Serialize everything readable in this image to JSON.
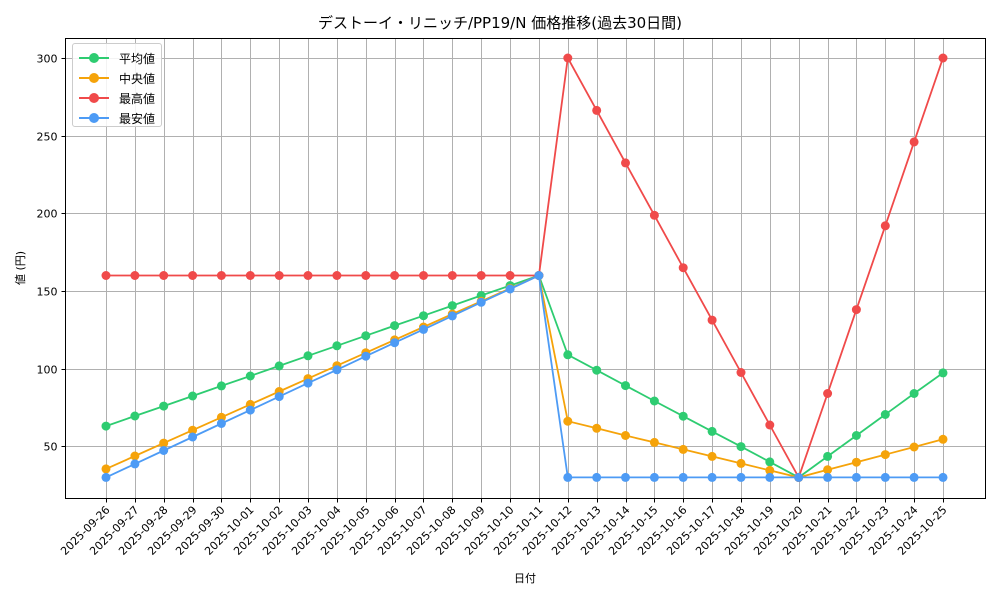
{
  "chart_data": {
    "type": "line",
    "title": "デストーイ・リニッチ/PP19/N 価格推移(過去30日間)",
    "xlabel": "日付",
    "ylabel": "値 (円)",
    "ylim": [
      20,
      312
    ],
    "yticks": [
      50,
      100,
      150,
      200,
      250,
      300
    ],
    "grid": true,
    "legend_position": "upper left",
    "x": [
      "2025-09-26",
      "2025-09-27",
      "2025-09-28",
      "2025-09-29",
      "2025-09-30",
      "2025-10-01",
      "2025-10-02",
      "2025-10-03",
      "2025-10-04",
      "2025-10-05",
      "2025-10-06",
      "2025-10-07",
      "2025-10-08",
      "2025-10-09",
      "2025-10-10",
      "2025-10-11",
      "2025-10-12",
      "2025-10-13",
      "2025-10-14",
      "2025-10-15",
      "2025-10-16",
      "2025-10-17",
      "2025-10-18",
      "2025-10-19",
      "2025-10-20",
      "2025-10-21",
      "2025-10-22",
      "2025-10-23",
      "2025-10-24",
      "2025-10-25"
    ],
    "series": [
      {
        "name": "平均値",
        "color": "#2ecc71",
        "values": [
          63,
          69.5,
          75.9,
          82.4,
          88.9,
          95.3,
          101.8,
          108.3,
          114.7,
          121.2,
          127.7,
          134.1,
          140.6,
          147.1,
          153.5,
          160,
          108.9,
          99,
          89.1,
          79.2,
          69.4,
          59.6,
          49.8,
          40,
          30,
          43.5,
          57,
          70.5,
          84,
          97.3
        ]
      },
      {
        "name": "中央値",
        "color": "#f5a30a",
        "values": [
          35.5,
          43.8,
          52.1,
          60.4,
          68.7,
          77,
          85.3,
          93.6,
          101.9,
          110.2,
          118.5,
          126.8,
          135.1,
          143.4,
          151.7,
          160,
          66.2,
          61.6,
          57,
          52.5,
          48,
          43.5,
          39,
          34.5,
          30,
          34.9,
          39.8,
          44.7,
          49.6,
          54.5
        ]
      },
      {
        "name": "最高値",
        "color": "#f04a4a",
        "values": [
          160,
          160,
          160,
          160,
          160,
          160,
          160,
          160,
          160,
          160,
          160,
          160,
          160,
          160,
          160,
          160,
          300,
          266.25,
          232.5,
          198.75,
          165,
          131.25,
          97.5,
          63.75,
          30,
          84,
          138,
          192,
          246,
          300
        ]
      },
      {
        "name": "最安値",
        "color": "#4d9bf5",
        "values": [
          30,
          38.7,
          47.3,
          56,
          64.7,
          73.3,
          82,
          90.7,
          99.3,
          108,
          116.7,
          125.3,
          134,
          142.7,
          151.3,
          160,
          30,
          30,
          30,
          30,
          30,
          30,
          30,
          30,
          30,
          30,
          30,
          30,
          30,
          30
        ]
      }
    ]
  }
}
